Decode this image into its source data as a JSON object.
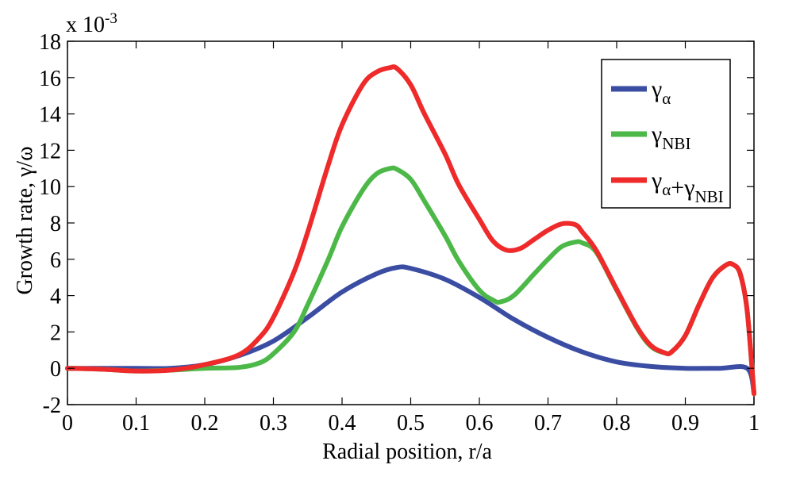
{
  "chart_data": {
    "type": "line",
    "xlabel": "Radial position, r/a",
    "ylabel": "Growth rate, γ/ω",
    "y_multiplier": {
      "base": "x 10",
      "exponent": "-3"
    },
    "xlim": [
      0,
      1
    ],
    "ylim": [
      -2,
      18
    ],
    "xticks": [
      0,
      0.1,
      0.2,
      0.3,
      0.4,
      0.5,
      0.6,
      0.7,
      0.8,
      0.9,
      1
    ],
    "xtick_labels": [
      "0",
      "0.1",
      "0.2",
      "0.3",
      "0.4",
      "0.5",
      "0.6",
      "0.7",
      "0.8",
      "0.9",
      "1"
    ],
    "yticks": [
      -2,
      0,
      2,
      4,
      6,
      8,
      10,
      12,
      14,
      16,
      18
    ],
    "ytick_labels": [
      "-2",
      "0",
      "2",
      "4",
      "6",
      "8",
      "10",
      "12",
      "14",
      "16",
      "18"
    ],
    "grid": false,
    "legend_position": "top-right",
    "series": [
      {
        "key": "alpha",
        "color": "#3a4da3",
        "legend": [
          {
            "main": "γ",
            "sub": "α"
          }
        ],
        "x": [
          0,
          0.05,
          0.1,
          0.15,
          0.2,
          0.25,
          0.3,
          0.35,
          0.4,
          0.45,
          0.48,
          0.5,
          0.55,
          0.6,
          0.65,
          0.7,
          0.75,
          0.8,
          0.85,
          0.9,
          0.95,
          0.99,
          1.0
        ],
        "y": [
          0,
          0,
          0,
          0,
          0.2,
          0.7,
          1.5,
          2.8,
          4.2,
          5.2,
          5.55,
          5.5,
          4.9,
          3.9,
          2.7,
          1.7,
          0.9,
          0.35,
          0.1,
          0,
          0,
          0,
          -1.3
        ]
      },
      {
        "key": "nbi",
        "color": "#4cb848",
        "legend": [
          {
            "main": "γ",
            "sub": "NBI"
          }
        ],
        "x": [
          0,
          0.05,
          0.1,
          0.15,
          0.2,
          0.25,
          0.28,
          0.3,
          0.33,
          0.35,
          0.38,
          0.4,
          0.43,
          0.45,
          0.47,
          0.48,
          0.5,
          0.52,
          0.55,
          0.57,
          0.6,
          0.62,
          0.63,
          0.65,
          0.68,
          0.7,
          0.72,
          0.74,
          0.75,
          0.77,
          0.8,
          0.83,
          0.85,
          0.87,
          0.88,
          0.9,
          0.92,
          0.94,
          0.96,
          0.97,
          0.98,
          0.99,
          1.0
        ],
        "y": [
          0,
          -0.05,
          -0.15,
          -0.1,
          0,
          0.05,
          0.3,
          0.8,
          2.0,
          3.5,
          6.0,
          7.8,
          9.8,
          10.7,
          11.0,
          10.95,
          10.4,
          9.2,
          7.3,
          5.9,
          4.3,
          3.75,
          3.65,
          4.0,
          5.2,
          6.0,
          6.7,
          6.95,
          6.9,
          6.4,
          4.3,
          2.2,
          1.2,
          0.85,
          0.9,
          1.8,
          3.5,
          5.0,
          5.7,
          5.7,
          5.2,
          3.2,
          -1.4
        ]
      },
      {
        "key": "total",
        "color": "#ee2a2a",
        "legend": [
          {
            "main": "γ",
            "sub": "α"
          },
          {
            "main": "+γ",
            "sub": "NBI"
          }
        ],
        "x": [
          0,
          0.05,
          0.1,
          0.15,
          0.2,
          0.25,
          0.28,
          0.3,
          0.33,
          0.35,
          0.38,
          0.4,
          0.43,
          0.45,
          0.47,
          0.48,
          0.5,
          0.52,
          0.55,
          0.57,
          0.6,
          0.62,
          0.64,
          0.66,
          0.68,
          0.7,
          0.72,
          0.74,
          0.75,
          0.77,
          0.8,
          0.83,
          0.85,
          0.87,
          0.88,
          0.9,
          0.92,
          0.94,
          0.96,
          0.97,
          0.98,
          0.99,
          1.0
        ],
        "y": [
          0,
          -0.05,
          -0.15,
          -0.1,
          0.2,
          0.75,
          1.7,
          2.8,
          5.3,
          7.5,
          11.2,
          13.4,
          15.6,
          16.3,
          16.55,
          16.5,
          15.6,
          14.0,
          11.8,
          10.1,
          8.2,
          7.0,
          6.5,
          6.6,
          7.1,
          7.6,
          7.95,
          7.9,
          7.5,
          6.5,
          4.35,
          2.25,
          1.25,
          0.85,
          0.9,
          1.8,
          3.5,
          5.0,
          5.7,
          5.7,
          5.2,
          3.2,
          -1.4
        ]
      }
    ]
  }
}
